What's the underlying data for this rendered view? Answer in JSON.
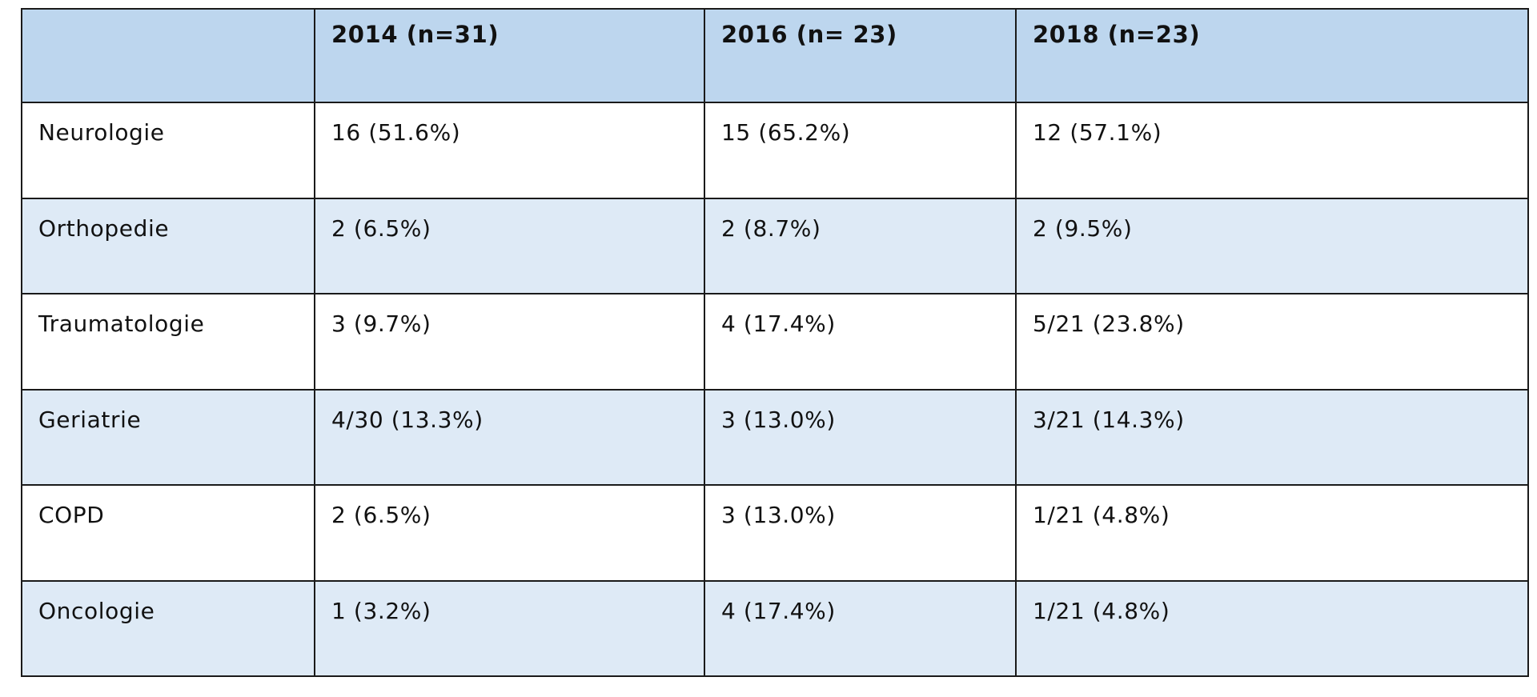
{
  "table": {
    "headers": [
      "",
      "2014 (n=31)",
      "2016 (n= 23)",
      "2018 (n=23)"
    ],
    "rows": [
      [
        "Neurologie",
        "16 (51.6%)",
        "15 (65.2%)",
        "12 (57.1%)"
      ],
      [
        "Orthopedie",
        "2 (6.5%)",
        "2 (8.7%)",
        "2 (9.5%)"
      ],
      [
        "Traumatologie",
        "3 (9.7%)",
        "4 (17.4%)",
        "5/21 (23.8%)"
      ],
      [
        "Geriatrie",
        "4/30 (13.3%)",
        "3 (13.0%)",
        "3/21 (14.3%)"
      ],
      [
        "COPD",
        "2 (6.5%)",
        "3 (13.0%)",
        "1/21 (4.8%)"
      ],
      [
        "Oncologie",
        "1 (3.2%)",
        "4 (17.4%)",
        "1/21 (4.8%)"
      ]
    ]
  },
  "colors": {
    "header_bg": "#bdd6ee",
    "band_bg": "#deeaf6",
    "row_bg": "#ffffff",
    "border": "#1a1a1a"
  }
}
